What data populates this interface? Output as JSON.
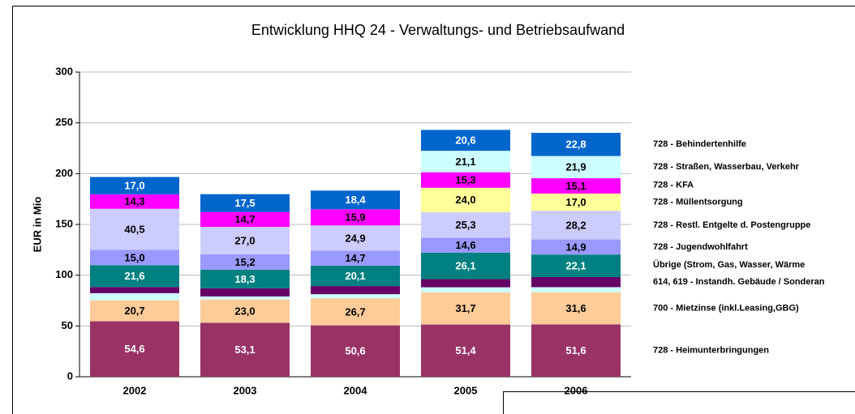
{
  "chart_data": {
    "type": "stacked_bar",
    "title": "Entwicklung HHQ 24 - Verwaltungs- und Betriebsaufwand",
    "y_label": "EUR in Mio",
    "categories": [
      "2002",
      "2003",
      "2004",
      "2005",
      "2006"
    ],
    "ylim": [
      0,
      300
    ],
    "yticks": [
      0,
      50,
      100,
      150,
      200,
      250,
      300
    ],
    "grid": true,
    "series": [
      {
        "name": "728 - Heimunterbringungen",
        "color": "#993366",
        "values": [
          54.6,
          53.1,
          50.6,
          51.4,
          51.6
        ],
        "value_labels": [
          "54,6",
          "53,1",
          "50,6",
          "51,4",
          "51,6"
        ]
      },
      {
        "name": "700 - Mietzinse (inkl.Leasing,GBG)",
        "color": "#FFCC99",
        "values": [
          20.7,
          23.0,
          26.7,
          31.7,
          31.6
        ],
        "value_labels": [
          "20,7",
          "23,0",
          "26,7",
          "31,7",
          "31,6"
        ]
      },
      {
        "name": null,
        "color": "#CCFFFF",
        "values": [
          7,
          3,
          4,
          5,
          5
        ],
        "value_labels": [
          null,
          null,
          null,
          null,
          null
        ]
      },
      {
        "name": "614, 619 - Instandh. Gebäude / Sonderan",
        "color": "#660066",
        "values": [
          6,
          8,
          8,
          8,
          10
        ],
        "value_labels": [
          null,
          null,
          null,
          null,
          null
        ]
      },
      {
        "name": "Übrige (Strom, Gas, Wasser, Wärme",
        "color": "#008080",
        "values": [
          21.6,
          18.3,
          20.1,
          26.1,
          22.1
        ],
        "value_labels": [
          "21,6",
          "18,3",
          "20,1",
          "26,1",
          "22,1"
        ]
      },
      {
        "name": "728 - Jugendwohlfahrt",
        "color": "#9999FF",
        "values": [
          15.0,
          15.2,
          14.7,
          14.6,
          14.9
        ],
        "value_labels": [
          "15,0",
          "15,2",
          "14,7",
          "14,6",
          "14,9"
        ]
      },
      {
        "name": "728 - Restl. Entgelte d. Postengruppe",
        "color": "#CCCCFF",
        "values": [
          40.5,
          27.0,
          24.9,
          25.3,
          28.2
        ],
        "value_labels": [
          "40,5",
          "27,0",
          "24,9",
          "25,3",
          "28,2"
        ]
      },
      {
        "name": "728 - Müllentsorgung",
        "color": "#FFFF99",
        "values": [
          null,
          null,
          null,
          24.0,
          17.0
        ],
        "value_labels": [
          null,
          null,
          null,
          "24,0",
          "17,0"
        ]
      },
      {
        "name": "728 - KFA",
        "color": "#FF00FF",
        "values": [
          14.3,
          14.7,
          15.9,
          15.3,
          15.1
        ],
        "value_labels": [
          "14,3",
          "14,7",
          "15,9",
          "15,3",
          "15,1"
        ]
      },
      {
        "name": "728 - Straßen, Wasserbau, Verkehr",
        "color": "#CCFFFF",
        "values": [
          null,
          null,
          null,
          21.1,
          21.9
        ],
        "value_labels": [
          null,
          null,
          null,
          "21,1",
          "21,9"
        ]
      },
      {
        "name": "728 - Behindertenhilfe",
        "color": "#0066CC",
        "values": [
          17.0,
          17.5,
          18.4,
          20.6,
          22.8
        ],
        "value_labels": [
          "17,0",
          "17,5",
          "18,4",
          "20,6",
          "22,8"
        ]
      }
    ]
  }
}
